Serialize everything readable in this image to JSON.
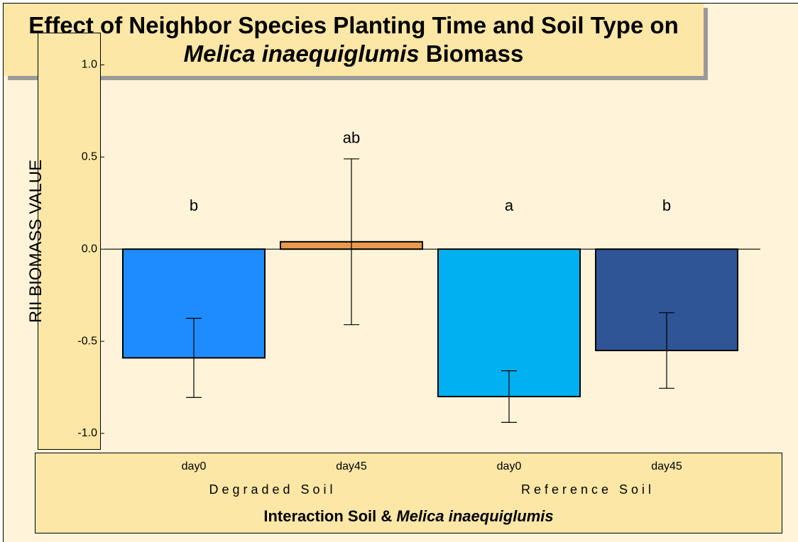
{
  "chart_data": {
    "type": "bar",
    "title": [
      "Effect of Neighbor Species Planting Time and Soil Type on ",
      "Melica inaequiglumis",
      " Biomass"
    ],
    "y_label": "RII BIOMASS VALUE",
    "x_label": [
      "Interaction Soil & ",
      "Melica inaequiglumis"
    ],
    "categories": [
      "day0",
      "day45",
      "day0",
      "day45"
    ],
    "groups": [
      {
        "name": "Degraded Soil",
        "span": [
          0,
          1
        ]
      },
      {
        "name": "Reference Soil",
        "span": [
          2,
          3
        ]
      }
    ],
    "values": [
      -0.59,
      0.04,
      -0.8,
      -0.55
    ],
    "errors": [
      0.215,
      0.45,
      0.14,
      0.205
    ],
    "colors": [
      "#1e8cff",
      "#e89b4f",
      "#00b0f0",
      "#2f5597"
    ],
    "annotations": [
      "b",
      "ab",
      "a",
      "b"
    ],
    "ylim": [
      -1.085,
      1.175
    ],
    "yticks": [
      {
        "value": 1.0,
        "label": "1.0"
      },
      {
        "value": 0.5,
        "label": "0.5"
      },
      {
        "value": 0.0,
        "label": "0.0"
      },
      {
        "value": -0.5,
        "label": "-0.5"
      },
      {
        "value": -1.0,
        "label": "-1.0"
      }
    ]
  }
}
